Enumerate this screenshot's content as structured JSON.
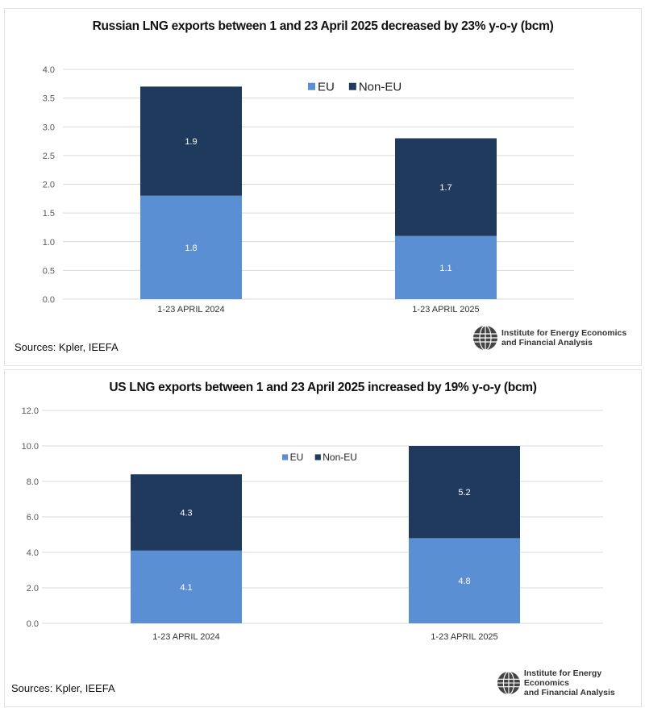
{
  "chart_data": [
    {
      "type": "bar",
      "stacked": true,
      "title": "Russian LNG exports between 1 and 23 April 2025 decreased by 23% y-o-y (bcm)",
      "categories": [
        "1-23 APRIL 2024",
        "1-23 APRIL 2025"
      ],
      "series": [
        {
          "name": "EU",
          "values": [
            1.8,
            1.1
          ],
          "color": "#5b8fd4"
        },
        {
          "name": "Non-EU",
          "values": [
            1.9,
            1.7
          ],
          "color": "#203a5e"
        }
      ],
      "ylim": [
        0,
        4.0
      ],
      "yticks": [
        "0.0",
        "0.5",
        "1.0",
        "1.5",
        "2.0",
        "2.5",
        "3.0",
        "3.5",
        "4.0"
      ],
      "grid": true,
      "legend": "top-center",
      "source": "Sources: Kpler, IEEFA"
    },
    {
      "type": "bar",
      "stacked": true,
      "title": "US LNG exports between 1 and 23 April 2025 increased by 19% y-o-y (bcm)",
      "categories": [
        "1-23 APRIL 2024",
        "1-23 APRIL 2025"
      ],
      "series": [
        {
          "name": "EU",
          "values": [
            4.1,
            4.8
          ],
          "color": "#5b8fd4"
        },
        {
          "name": "Non-EU",
          "values": [
            4.3,
            5.2
          ],
          "color": "#203a5e"
        }
      ],
      "ylim": [
        0,
        12.0
      ],
      "yticks": [
        "0.0",
        "2.0",
        "4.0",
        "6.0",
        "8.0",
        "10.0",
        "12.0"
      ],
      "grid": true,
      "legend": "top-center",
      "source": "Sources: Kpler, IEEFA"
    }
  ],
  "logo": {
    "line1": "Institute for Energy Economics",
    "line2": "and Financial Analysis",
    "icon": "globe-icon"
  }
}
